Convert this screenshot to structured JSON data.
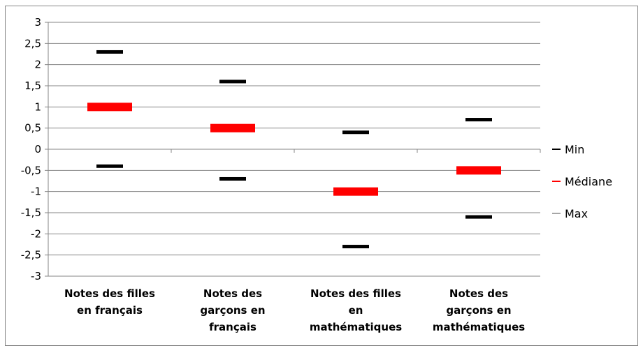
{
  "chart_data": {
    "type": "scatter",
    "categories": [
      [
        "Notes des filles",
        "en français"
      ],
      [
        "Notes des",
        "garçons en",
        "français"
      ],
      [
        "Notes des filles",
        "en",
        "mathématiques"
      ],
      [
        "Notes des",
        "garçons en",
        "mathématiques"
      ]
    ],
    "series": [
      {
        "name": "Min",
        "values": [
          -0.4,
          -0.7,
          -2.3,
          -1.6
        ],
        "color": "#000000"
      },
      {
        "name": "Médiane",
        "values": [
          1,
          0.5,
          -1,
          -0.5
        ],
        "color": "#ff0000"
      },
      {
        "name": "Max",
        "values": [
          2.3,
          1.6,
          0.4,
          0.7
        ],
        "color": "#000000"
      }
    ],
    "y_ticks": [
      "3",
      "2,5",
      "2",
      "1,5",
      "1",
      "0,5",
      "0",
      "-0,5",
      "-1",
      "-1,5",
      "-2",
      "-2,5",
      "-3"
    ],
    "ylim": [
      -3,
      3
    ],
    "grid": true,
    "legend_position": "right",
    "legend_marker_colors": [
      "#000000",
      "#ff0000",
      "#a6a6a6"
    ]
  }
}
